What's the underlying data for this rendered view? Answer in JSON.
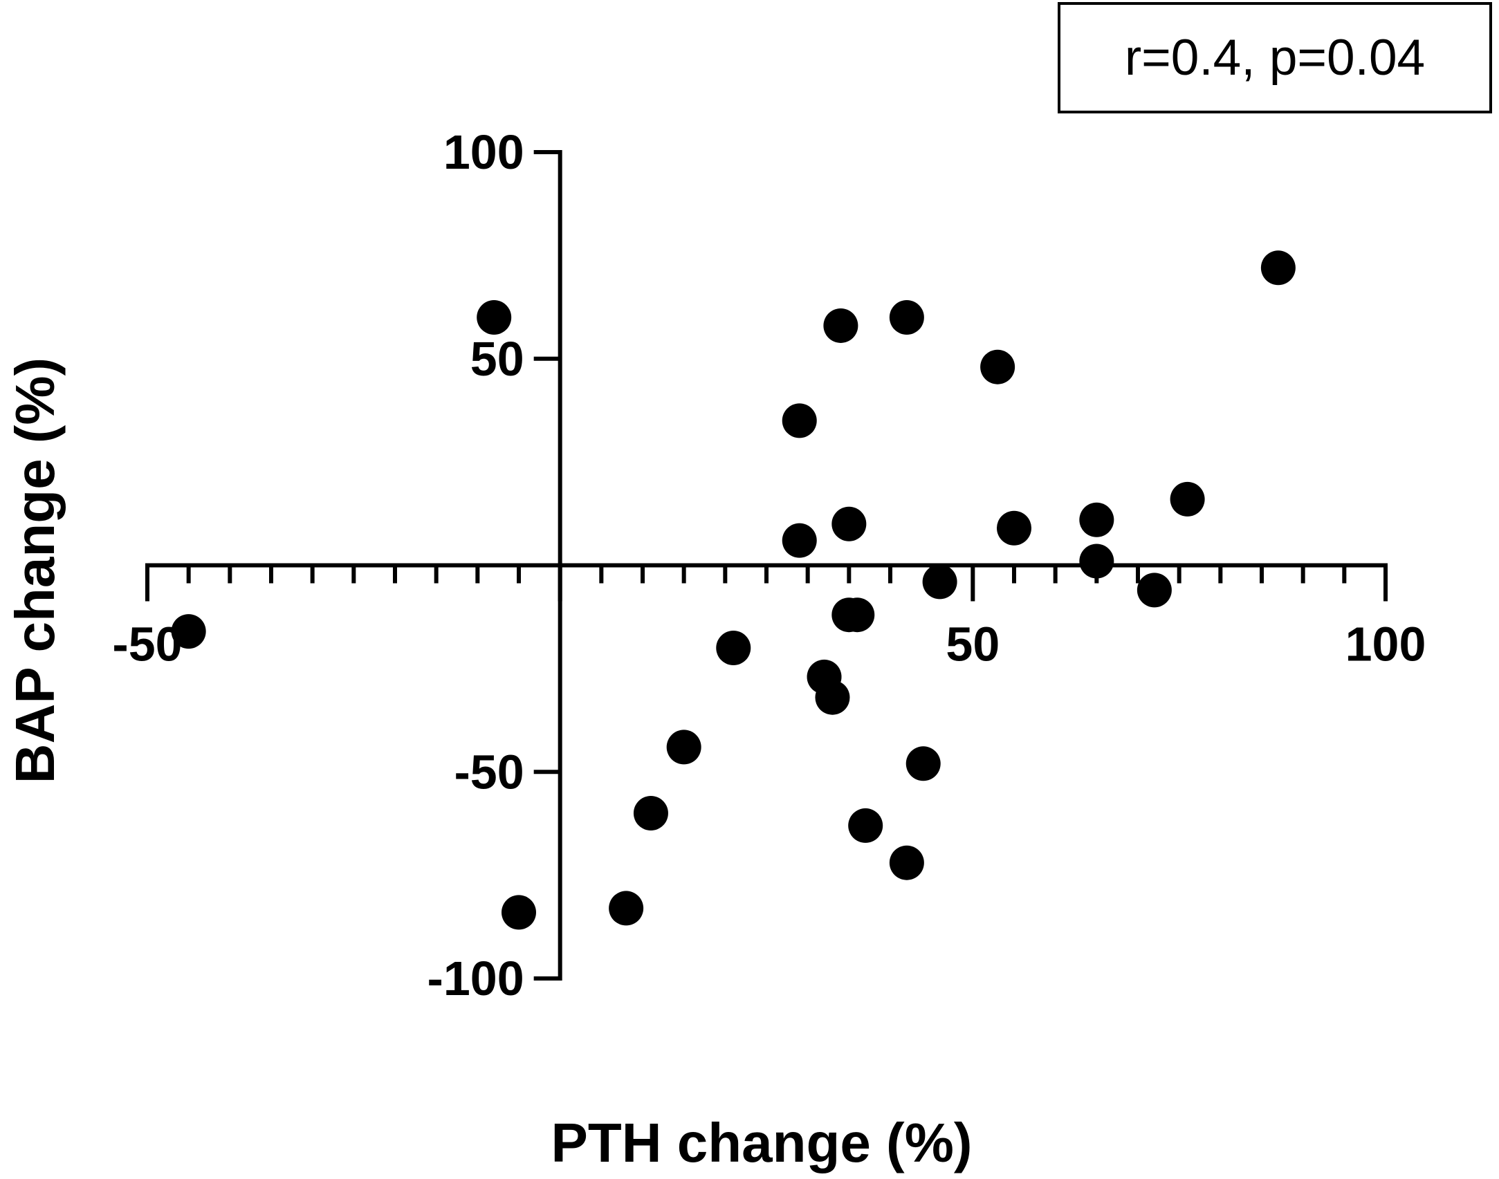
{
  "chart_data": {
    "type": "scatter",
    "title": "",
    "xlabel": "PTH change (%)",
    "ylabel": "BAP change (%)",
    "xlim": [
      -50,
      100
    ],
    "ylim": [
      -100,
      100
    ],
    "x_major_ticks": [
      -50,
      50,
      100
    ],
    "x_minor_tick_step": 5,
    "y_major_ticks": [
      -100,
      -50,
      50,
      100
    ],
    "grid": false,
    "annotation": "r=0.4, p=0.04",
    "marker_color": "#000000",
    "series": [
      {
        "points": [
          {
            "x": -45,
            "y": -16
          },
          {
            "x": -8,
            "y": 60
          },
          {
            "x": -5,
            "y": -84
          },
          {
            "x": 8,
            "y": -83
          },
          {
            "x": 11,
            "y": -60
          },
          {
            "x": 15,
            "y": -44
          },
          {
            "x": 21,
            "y": -20
          },
          {
            "x": 29,
            "y": 35
          },
          {
            "x": 29,
            "y": 6
          },
          {
            "x": 32,
            "y": -27
          },
          {
            "x": 33,
            "y": -32
          },
          {
            "x": 34,
            "y": 58
          },
          {
            "x": 35,
            "y": 10
          },
          {
            "x": 35,
            "y": -12
          },
          {
            "x": 36,
            "y": -12
          },
          {
            "x": 37,
            "y": -63
          },
          {
            "x": 42,
            "y": -72
          },
          {
            "x": 42,
            "y": 60
          },
          {
            "x": 44,
            "y": -48
          },
          {
            "x": 46,
            "y": -4
          },
          {
            "x": 53,
            "y": 48
          },
          {
            "x": 55,
            "y": 9
          },
          {
            "x": 65,
            "y": 11
          },
          {
            "x": 65,
            "y": 1
          },
          {
            "x": 72,
            "y": -6
          },
          {
            "x": 76,
            "y": 16
          },
          {
            "x": 87,
            "y": 72
          }
        ]
      }
    ]
  }
}
